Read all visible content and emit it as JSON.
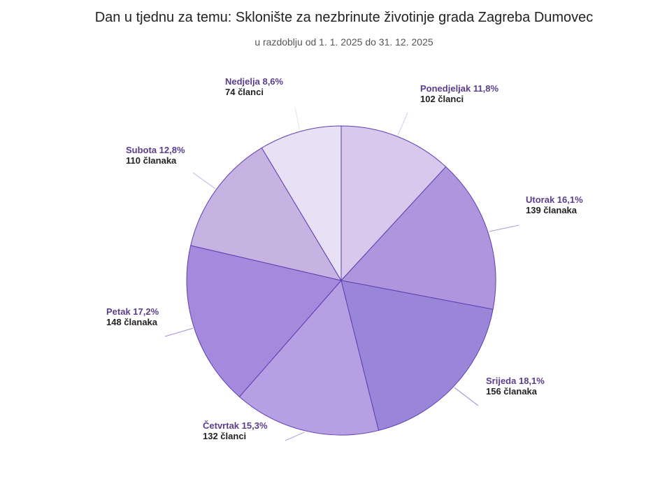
{
  "chart_data": {
    "type": "pie",
    "title": "Dan u tjednu za temu: Sklonište za nezbrinute životinje grada Zagreba Dumovec",
    "subtitle": "u razdoblju od 1. 1. 2025 do 31. 12. 2025",
    "categories": [
      "Ponedjeljak",
      "Utorak",
      "Srijeda",
      "Četvrtak",
      "Petak",
      "Subota",
      "Nedjelja"
    ],
    "values": [
      102,
      139,
      156,
      132,
      148,
      110,
      74
    ],
    "percent_labels": [
      "11,8%",
      "16,1%",
      "18,1%",
      "15,3%",
      "17,2%",
      "12,8%",
      "8,6%"
    ],
    "count_labels": [
      "102 članci",
      "139 članaka",
      "156 članaka",
      "132 članci",
      "148 članaka",
      "110 članaka",
      "74 članci"
    ],
    "colors": [
      "#d8c8ec",
      "#ae95de",
      "#9a86d8",
      "#b69fe2",
      "#a489dc",
      "#c7b3e2",
      "#e8e0f4"
    ],
    "label_color": "#5a3d8c",
    "stroke_color": "#5e3eb3"
  }
}
